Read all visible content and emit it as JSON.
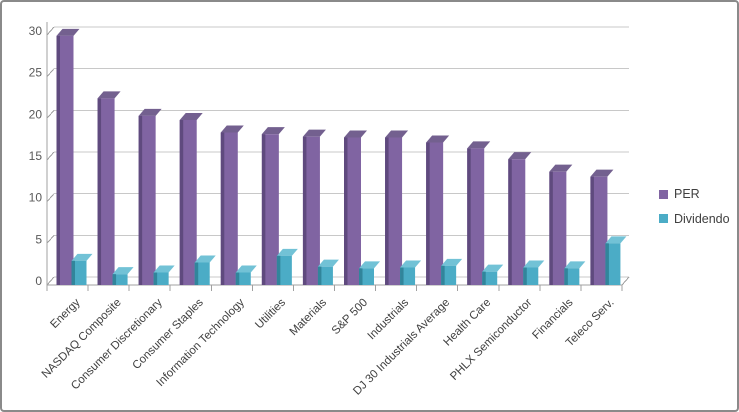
{
  "window": {
    "background": "#FFFFFF",
    "border_color": "#8A8A8A"
  },
  "chart_data": {
    "type": "bar",
    "variant": "3d-clustered-column",
    "title": "",
    "xlabel": "",
    "ylabel": "",
    "categories": [
      "Energy",
      "NASDAQ Composite",
      "Consumer Discretionary",
      "Consumer Staples",
      "Information Technology",
      "Utilities",
      "Materials",
      "S&P 500",
      "Industrials",
      "DJ 30 Industrials Average",
      "Health Care",
      "PHLX Semiconductor",
      "Financials",
      "Teleco Serv."
    ],
    "series": [
      {
        "name": "PER",
        "color": "#8064A2",
        "color_dark": "#5F4A7E",
        "color_top": "#73608F",
        "values": [
          29.9,
          22.4,
          20.3,
          19.8,
          18.3,
          18.1,
          17.8,
          17.7,
          17.7,
          17.1,
          16.4,
          15.1,
          13.6,
          13.0
        ]
      },
      {
        "name": "Dividendo",
        "color": "#4BACC6",
        "color_dark": "#31859B",
        "color_top": "#72C2D6",
        "values": [
          2.9,
          1.3,
          1.5,
          2.7,
          1.5,
          3.5,
          2.2,
          2.0,
          2.1,
          2.3,
          1.6,
          2.1,
          2.0,
          5.0
        ]
      }
    ],
    "ylim": [
      0,
      30
    ],
    "yticks": [
      0,
      5,
      10,
      15,
      20,
      25,
      30
    ],
    "grid": true,
    "legend_position": "right",
    "gridline_color": "#C8C8C8",
    "axis_color": "#A0A0A0",
    "ytick_label_color": "#595959",
    "xtick_label_color": "#404040"
  }
}
